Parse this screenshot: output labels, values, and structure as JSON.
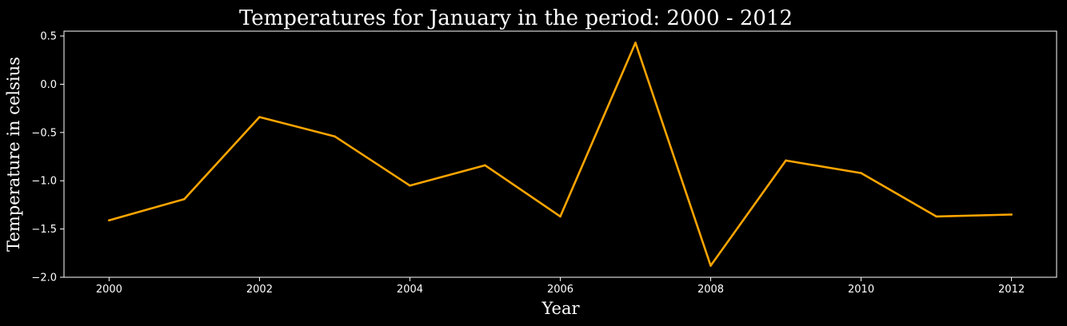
{
  "chart_data": {
    "type": "line",
    "title": "Temperatures for January in the period: 2000 - 2012",
    "xlabel": "Year",
    "ylabel": "Temperature in celsius",
    "x": [
      2000,
      2001,
      2002,
      2003,
      2004,
      2005,
      2006,
      2007,
      2008,
      2009,
      2010,
      2011,
      2012
    ],
    "series": [
      {
        "values": [
          -1.41,
          -1.19,
          -0.34,
          -0.54,
          -1.05,
          -0.84,
          -1.37,
          0.43,
          -1.88,
          -0.79,
          -0.92,
          -1.37,
          -1.35
        ],
        "color": "#ffa500"
      }
    ],
    "xlim": [
      1999.4,
      2012.6
    ],
    "ylim": [
      -2.0,
      0.55
    ],
    "xticks": [
      2000,
      2002,
      2004,
      2006,
      2008,
      2010,
      2012
    ],
    "xtick_labels": [
      "2000",
      "2002",
      "2004",
      "2006",
      "2008",
      "2010",
      "2012"
    ],
    "yticks": [
      -2.0,
      -1.5,
      -1.0,
      -0.5,
      0.0,
      0.5
    ],
    "ytick_labels": [
      "−2.0",
      "−1.5",
      "−1.0",
      "−0.5",
      "0.0",
      "0.5"
    ],
    "grid": false,
    "background": "#000000",
    "foreground": "#ffffff"
  }
}
